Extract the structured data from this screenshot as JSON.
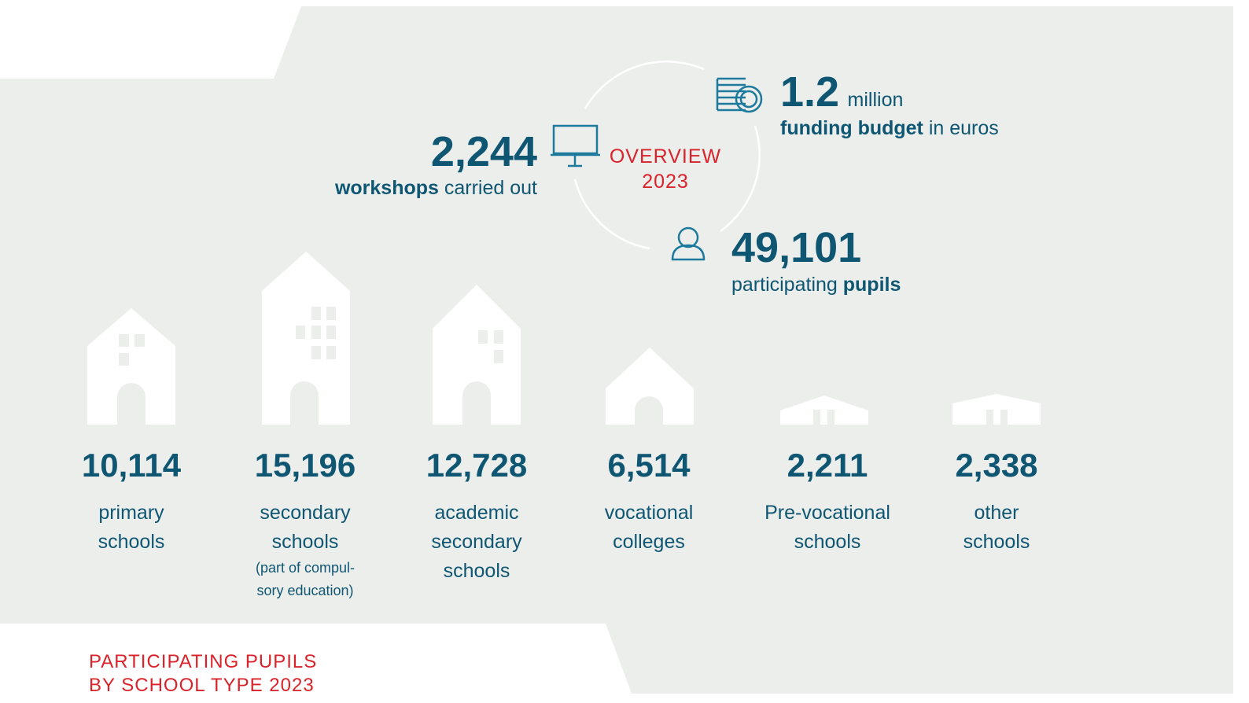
{
  "overview": {
    "line1": "OVERVIEW",
    "line2": "2023"
  },
  "stats": {
    "workshops": {
      "value": "2,244",
      "bold": "workshops",
      "text": "carried out"
    },
    "budget": {
      "value": "1.2",
      "unit": "million",
      "bold": "funding budget",
      "text": "in euros"
    },
    "pupils": {
      "value": "49,101",
      "text": "participating",
      "bold": "pupils"
    }
  },
  "schools": [
    {
      "value": "10,114",
      "label": [
        "primary",
        "schools"
      ]
    },
    {
      "value": "15,196",
      "label": [
        "secondary",
        "schools"
      ],
      "note": [
        "(part of compul-",
        "sory education)"
      ]
    },
    {
      "value": "12,728",
      "label": [
        "academic",
        "secondary",
        "schools"
      ]
    },
    {
      "value": "6,514",
      "label": [
        "vocational",
        "colleges"
      ]
    },
    {
      "value": "2,211",
      "label": [
        "Pre-vocational",
        "schools"
      ]
    },
    {
      "value": "2,338",
      "label": [
        "other",
        "schools"
      ]
    }
  ],
  "footer": [
    "PARTICIPATING PUPILS",
    "BY SCHOOL TYPE 2023"
  ]
}
